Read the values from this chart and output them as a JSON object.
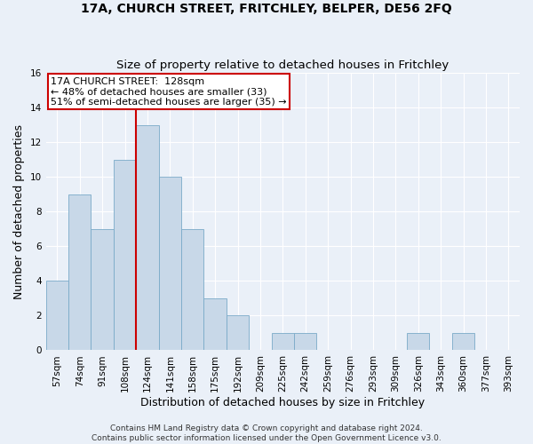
{
  "title": "17A, CHURCH STREET, FRITCHLEY, BELPER, DE56 2FQ",
  "subtitle": "Size of property relative to detached houses in Fritchley",
  "xlabel": "Distribution of detached houses by size in Fritchley",
  "ylabel": "Number of detached properties",
  "bar_labels": [
    "57sqm",
    "74sqm",
    "91sqm",
    "108sqm",
    "124sqm",
    "141sqm",
    "158sqm",
    "175sqm",
    "192sqm",
    "209sqm",
    "225sqm",
    "242sqm",
    "259sqm",
    "276sqm",
    "293sqm",
    "309sqm",
    "326sqm",
    "343sqm",
    "360sqm",
    "377sqm",
    "393sqm"
  ],
  "bar_values": [
    4,
    9,
    7,
    11,
    13,
    10,
    7,
    3,
    2,
    0,
    1,
    1,
    0,
    0,
    0,
    0,
    1,
    0,
    1,
    0,
    0
  ],
  "bar_color": "#c8d8e8",
  "bar_edgecolor": "#7aaac8",
  "background_color": "#eaf0f8",
  "grid_color": "#ffffff",
  "vline_index": 4,
  "vline_color": "#cc0000",
  "annotation_line1": "17A CHURCH STREET:  128sqm",
  "annotation_line2": "← 48% of detached houses are smaller (33)",
  "annotation_line3": "51% of semi-detached houses are larger (35) →",
  "annotation_box_color": "#ffffff",
  "annotation_box_edgecolor": "#cc0000",
  "ylim": [
    0,
    16
  ],
  "yticks": [
    0,
    2,
    4,
    6,
    8,
    10,
    12,
    14,
    16
  ],
  "footnote": "Contains HM Land Registry data © Crown copyright and database right 2024.\nContains public sector information licensed under the Open Government Licence v3.0.",
  "title_fontsize": 10,
  "subtitle_fontsize": 9.5,
  "xlabel_fontsize": 9,
  "ylabel_fontsize": 9,
  "tick_fontsize": 7.5,
  "annotation_fontsize": 8,
  "footnote_fontsize": 6.5
}
